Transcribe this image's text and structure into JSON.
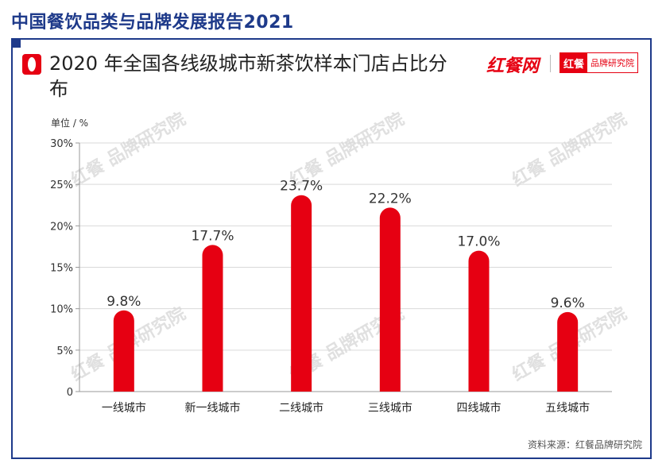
{
  "report_title": "中国餐饮品类与品牌发展报告2021",
  "chart_title": "2020 年全国各线级城市新茶饮样本门店占比分布",
  "unit": "单位 / %",
  "source": "资料来源：红餐品牌研究院",
  "logo": {
    "main": "红餐网",
    "badge_left": "红餐",
    "badge_right": "品牌研究院"
  },
  "watermark": "红餐 品牌研究院",
  "colors": {
    "bar": "#e60012",
    "frame": "#1e3a8a"
  },
  "chart_data": {
    "type": "bar",
    "categories": [
      "一线城市",
      "新一线城市",
      "二线城市",
      "三线城市",
      "四线城市",
      "五线城市"
    ],
    "values": [
      9.8,
      17.7,
      23.7,
      22.2,
      17.0,
      9.6
    ],
    "value_labels": [
      "9.8%",
      "17.7%",
      "23.7%",
      "22.2%",
      "17.0%",
      "9.6%"
    ],
    "yticks": [
      0,
      5,
      10,
      15,
      20,
      25,
      30
    ],
    "ytick_labels": [
      "0",
      "5%",
      "10%",
      "15%",
      "20%",
      "25%",
      "30%"
    ],
    "ylim": [
      0,
      30
    ],
    "grid": true
  }
}
